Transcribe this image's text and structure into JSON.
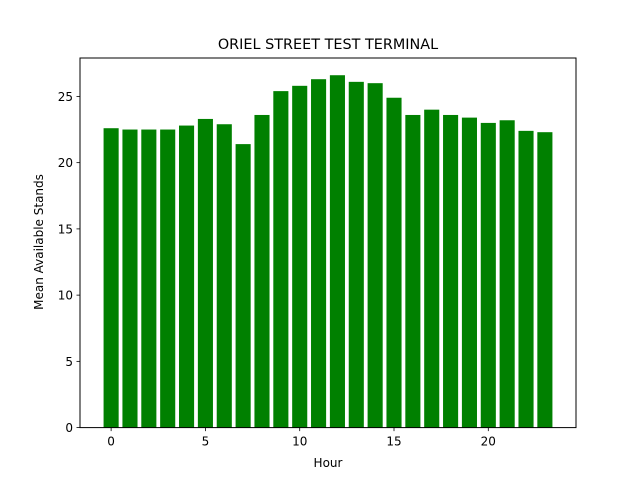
{
  "chart_data": {
    "type": "bar",
    "title": "ORIEL STREET TEST TERMINAL",
    "xlabel": "Hour",
    "ylabel": "Mean Available Stands",
    "x": [
      0,
      1,
      2,
      3,
      4,
      5,
      6,
      7,
      8,
      9,
      10,
      11,
      12,
      13,
      14,
      15,
      16,
      17,
      18,
      19,
      20,
      21,
      22,
      23
    ],
    "values": [
      22.6,
      22.5,
      22.5,
      22.5,
      22.8,
      23.3,
      22.9,
      21.4,
      23.6,
      25.4,
      25.8,
      26.3,
      26.6,
      26.1,
      26.0,
      24.9,
      23.6,
      24.0,
      23.6,
      23.4,
      23.0,
      23.2,
      22.4,
      22.3
    ],
    "bar_color": "#008000",
    "xticks": [
      0,
      5,
      10,
      15,
      20
    ],
    "yticks": [
      0,
      5,
      10,
      15,
      20,
      25
    ],
    "xlim": [
      -1.65,
      24.65
    ],
    "ylim": [
      0,
      27.9
    ],
    "grid": false,
    "legend": false
  }
}
